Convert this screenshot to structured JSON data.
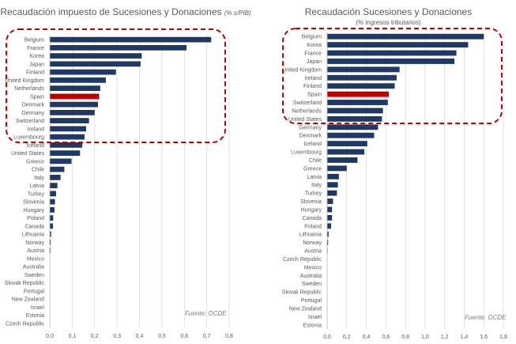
{
  "colors": {
    "bar": "#1f3864",
    "highlight": "#c00000",
    "highlight_box": "#c00000",
    "grid": "#d9d9d9",
    "text": "#595959"
  },
  "chart_data": [
    {
      "type": "bar",
      "orientation": "horizontal",
      "title": "Recaudación impuesto de Sucesiones y Donaciones",
      "subtitle": "(% s/PIB)",
      "source": "Fuente: OCDE",
      "highlight_category": "Spain",
      "grid": true,
      "xlim": [
        0,
        0.8
      ],
      "xticks": [
        0.0,
        0.1,
        0.2,
        0.3,
        0.4,
        0.5,
        0.6,
        0.7,
        0.8
      ],
      "xtick_labels": [
        "0,0",
        "0,1",
        "0,2",
        "0,3",
        "0,4",
        "0,5",
        "0,6",
        "0,7",
        "0,8"
      ],
      "categories": [
        "Belgium",
        "France",
        "Korea",
        "Japan",
        "Finland",
        "United Kingdom",
        "Netherlands",
        "Spain",
        "Denmark",
        "Germany",
        "Switzerland",
        "Ireland",
        "Luxembourg",
        "Iceland",
        "United States",
        "Greece",
        "Chile",
        "Italy",
        "Latvia",
        "Turkey",
        "Slovenia",
        "Hungary",
        "Poland",
        "Canada",
        "Lithuania",
        "Norway",
        "Austria",
        "Mexico",
        "Australia",
        "Sweden",
        "Slovak Republic",
        "Portugal",
        "New Zealand",
        "Israel",
        "Estonia",
        "Czech Republic"
      ],
      "values": [
        0.72,
        0.61,
        0.41,
        0.405,
        0.295,
        0.25,
        0.225,
        0.22,
        0.215,
        0.2,
        0.175,
        0.162,
        0.155,
        0.145,
        0.135,
        0.097,
        0.065,
        0.048,
        0.034,
        0.028,
        0.023,
        0.021,
        0.015,
        0.014,
        0.006,
        0.004,
        0.003,
        0,
        0,
        0,
        0,
        0,
        0,
        0,
        0,
        0
      ]
    },
    {
      "type": "bar",
      "orientation": "horizontal",
      "title": "Recaudación Sucesiones y Donaciones",
      "subtitle": "(% ingresos tributarios)",
      "source": "Fuente: OCDE",
      "highlight_category": "Spain",
      "grid": true,
      "xlim": [
        0,
        1.8
      ],
      "xticks": [
        0.0,
        0.2,
        0.4,
        0.6,
        0.8,
        1.0,
        1.2,
        1.4,
        1.6,
        1.8
      ],
      "xtick_labels": [
        "0,0",
        "0,2",
        "0,4",
        "0,6",
        "0,8",
        "1,0",
        "1,2",
        "1,4",
        "1,6",
        "1,8"
      ],
      "categories": [
        "Belgium",
        "Korea",
        "France",
        "Japan",
        "United Kingdom",
        "Ireland",
        "Finland",
        "Spain",
        "Switzerland",
        "Netherlands",
        "United States",
        "Germany",
        "Denmark",
        "Iceland",
        "Luxembourg",
        "Chile",
        "Greece",
        "Latvia",
        "Italy",
        "Turkey",
        "Slovenia",
        "Hungary",
        "Canada",
        "Poland",
        "Lithuania",
        "Norway",
        "Austria",
        "Czech Republic",
        "Mexico",
        "Australia",
        "Sweden",
        "Slovak Republic",
        "Portugal",
        "New Zealand",
        "Israel",
        "Estonia"
      ],
      "values": [
        1.6,
        1.44,
        1.32,
        1.3,
        0.74,
        0.71,
        0.69,
        0.63,
        0.62,
        0.57,
        0.56,
        0.52,
        0.48,
        0.41,
        0.38,
        0.31,
        0.2,
        0.12,
        0.11,
        0.1,
        0.06,
        0.05,
        0.05,
        0.04,
        0.015,
        0.01,
        0.005,
        0,
        0,
        0,
        0,
        0,
        0,
        0,
        0,
        0
      ]
    }
  ]
}
